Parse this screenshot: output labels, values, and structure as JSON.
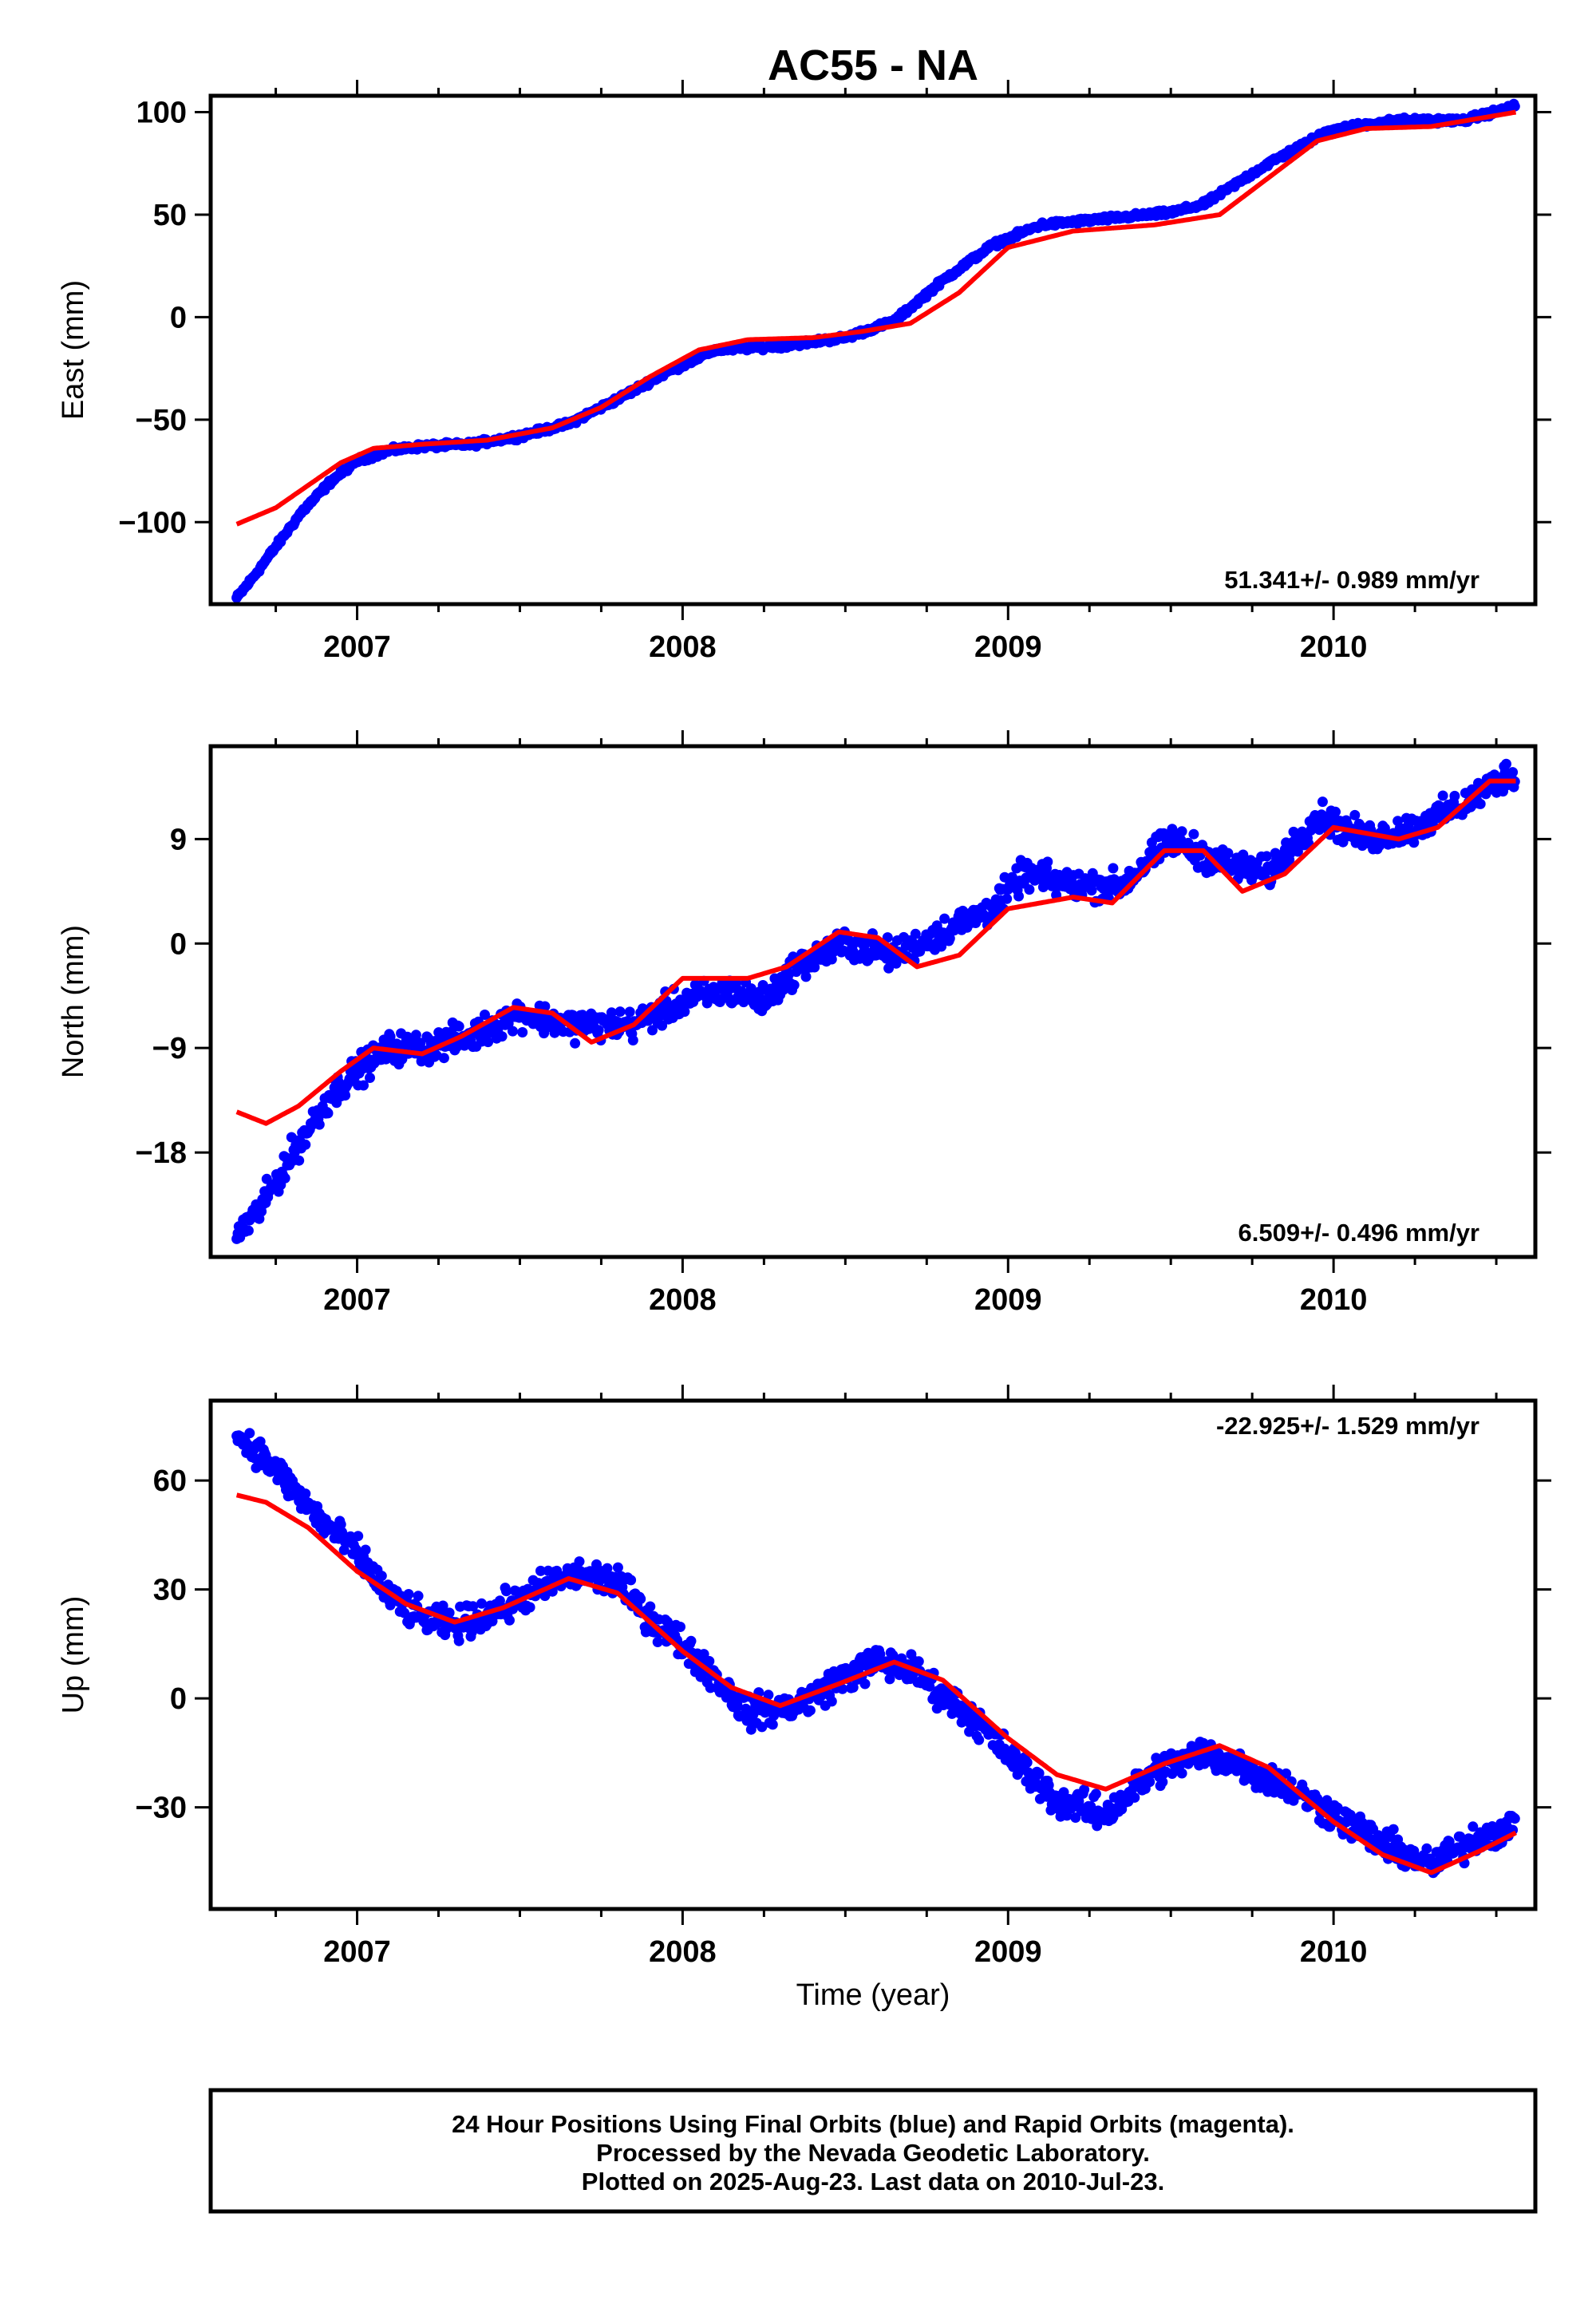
{
  "chart_data": {
    "type": "scatter",
    "title": "AC55 - NA",
    "colors": {
      "final_orbits": "#0000ff",
      "model": "#ff0000",
      "frame": "#000000"
    },
    "xlabel": "Time (year)",
    "xlim": [
      2006.55,
      2010.62
    ],
    "x_ticks": [
      2007,
      2008,
      2009,
      2010
    ],
    "x_tick_labels": [
      "2007",
      "2008",
      "2009",
      "2010"
    ],
    "panels": [
      {
        "name": "east",
        "ylabel": "East (mm)",
        "ylim": [
          -140,
          108
        ],
        "y_ticks": [
          100,
          50,
          0,
          -50,
          -100
        ],
        "y_tick_labels": [
          "100",
          "50",
          "0",
          "−50",
          "−100"
        ],
        "rate": "51.341+/- 0.989 mm/yr",
        "rate_position": "bottom-right",
        "observed": {
          "x": [
            2006.63,
            2006.68,
            2006.75,
            2006.83,
            2006.92,
            2007.0,
            2007.1,
            2007.2,
            2007.35,
            2007.5,
            2007.65,
            2007.8,
            2007.95,
            2008.1,
            2008.3,
            2008.5,
            2008.65,
            2008.8,
            2008.95,
            2009.1,
            2009.3,
            2009.5,
            2009.6,
            2009.8,
            2010.0,
            2010.2,
            2010.4,
            2010.56
          ],
          "y": [
            -137,
            -127,
            -112,
            -95,
            -80,
            -70,
            -65,
            -63,
            -62,
            -58,
            -52,
            -40,
            -27,
            -16,
            -14,
            -10,
            -2,
            18,
            35,
            45,
            48,
            51,
            55,
            75,
            92,
            96,
            96,
            103
          ]
        },
        "model": {
          "x": [
            2006.63,
            2006.75,
            2006.85,
            2006.95,
            2007.05,
            2007.2,
            2007.4,
            2007.6,
            2007.75,
            2007.9,
            2008.05,
            2008.2,
            2008.4,
            2008.55,
            2008.7,
            2008.85,
            2009.0,
            2009.2,
            2009.45,
            2009.65,
            2009.8,
            2009.95,
            2010.1,
            2010.3,
            2010.56
          ],
          "y": [
            -101,
            -93,
            -82,
            -71,
            -64,
            -62,
            -60,
            -54,
            -44,
            -29,
            -16,
            -11,
            -10,
            -7,
            -3,
            12,
            34,
            42,
            45,
            50,
            68,
            86,
            92,
            93,
            100
          ]
        }
      },
      {
        "name": "north",
        "ylabel": "North (mm)",
        "ylim": [
          -27,
          17
        ],
        "y_ticks": [
          9,
          0,
          -9,
          -18
        ],
        "y_tick_labels": [
          "9",
          "0",
          "−9",
          "−18"
        ],
        "rate": "6.509+/- 0.496 mm/yr",
        "rate_position": "bottom-right",
        "observed": {
          "x": [
            2006.63,
            2006.7,
            2006.78,
            2006.85,
            2006.92,
            2007.0,
            2007.1,
            2007.2,
            2007.35,
            2007.5,
            2007.65,
            2007.75,
            2007.85,
            2008.0,
            2008.15,
            2008.25,
            2008.35,
            2008.5,
            2008.65,
            2008.8,
            2008.95,
            2009.05,
            2009.2,
            2009.35,
            2009.5,
            2009.65,
            2009.8,
            2009.95,
            2010.1,
            2010.25,
            2010.4,
            2010.56
          ],
          "y": [
            -25,
            -23,
            -19,
            -16,
            -13,
            -11,
            -9,
            -9,
            -8,
            -6,
            -7,
            -7,
            -7,
            -5,
            -4,
            -5,
            -2,
            0,
            -1,
            1,
            3,
            6,
            5,
            5,
            9,
            7,
            6,
            11,
            9,
            10,
            12,
            15
          ]
        },
        "model": {
          "x": [
            2006.63,
            2006.72,
            2006.82,
            2006.95,
            2007.05,
            2007.2,
            2007.32,
            2007.48,
            2007.6,
            2007.72,
            2007.85,
            2008.0,
            2008.2,
            2008.32,
            2008.48,
            2008.6,
            2008.72,
            2008.85,
            2009.0,
            2009.2,
            2009.32,
            2009.48,
            2009.6,
            2009.72,
            2009.85,
            2010.0,
            2010.2,
            2010.32,
            2010.48,
            2010.56
          ],
          "y": [
            -14.5,
            -15.5,
            -14,
            -11,
            -9,
            -9.5,
            -8,
            -5.5,
            -6,
            -8.5,
            -7,
            -3,
            -3,
            -2,
            1,
            0.5,
            -2,
            -1,
            3,
            4,
            3.5,
            8,
            8,
            4.5,
            6,
            10,
            9,
            10,
            14,
            14
          ]
        }
      },
      {
        "name": "up",
        "ylabel": "Up (mm)",
        "xlabel": "Time (year)",
        "ylim": [
          -58,
          82
        ],
        "y_ticks": [
          60,
          30,
          0,
          -30
        ],
        "y_tick_labels": [
          "60",
          "30",
          "0",
          "−30"
        ],
        "rate": "-22.925+/- 1.529 mm/yr",
        "rate_position": "top-right",
        "observed": {
          "x": [
            2006.63,
            2006.7,
            2006.8,
            2006.9,
            2007.0,
            2007.1,
            2007.2,
            2007.3,
            2007.45,
            2007.6,
            2007.7,
            2007.8,
            2007.9,
            2008.0,
            2008.1,
            2008.2,
            2008.35,
            2008.5,
            2008.6,
            2008.7,
            2008.8,
            2008.9,
            2009.05,
            2009.15,
            2009.3,
            2009.45,
            2009.6,
            2009.7,
            2009.85,
            2010.0,
            2010.15,
            2010.3,
            2010.45,
            2010.56
          ],
          "y": [
            72,
            68,
            58,
            48,
            40,
            28,
            22,
            20,
            25,
            32,
            34,
            32,
            22,
            15,
            6,
            -4,
            -2,
            6,
            10,
            8,
            1,
            -6,
            -20,
            -28,
            -32,
            -20,
            -15,
            -18,
            -24,
            -32,
            -40,
            -46,
            -38,
            -35
          ]
        },
        "model": {
          "x": [
            2006.63,
            2006.72,
            2006.85,
            2007.0,
            2007.15,
            2007.3,
            2007.45,
            2007.65,
            2007.8,
            2008.0,
            2008.15,
            2008.3,
            2008.48,
            2008.65,
            2008.8,
            2009.0,
            2009.15,
            2009.3,
            2009.48,
            2009.65,
            2009.8,
            2010.0,
            2010.15,
            2010.3,
            2010.45,
            2010.56
          ],
          "y": [
            56,
            54,
            47,
            35,
            26,
            21,
            25,
            33,
            29,
            13,
            3,
            -2,
            4,
            10,
            5,
            -11,
            -21,
            -25,
            -18,
            -13,
            -19,
            -34,
            -43,
            -48,
            -42,
            -37
          ]
        }
      }
    ],
    "footer": {
      "lines": [
        "24 Hour Positions Using Final Orbits (blue) and Rapid Orbits (magenta).",
        "Processed by the Nevada Geodetic Laboratory.",
        "Plotted on 2025-Aug-23. Last data on 2010-Jul-23."
      ]
    }
  }
}
